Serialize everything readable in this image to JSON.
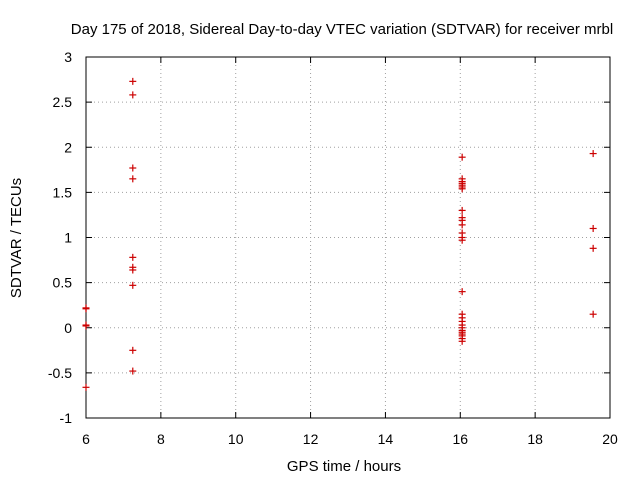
{
  "chart_data": {
    "type": "scatter",
    "title": "Day 175 of 2018, Sidereal Day-to-day VTEC variation (SDTVAR) for receiver mrbl",
    "xlabel": "GPS time / hours",
    "ylabel": "SDTVAR / TECUs",
    "xlim": [
      6,
      20
    ],
    "ylim": [
      -1,
      3
    ],
    "xticks": [
      6,
      8,
      10,
      12,
      14,
      16,
      18,
      20
    ],
    "yticks": [
      -1,
      -0.5,
      0,
      0.5,
      1,
      1.5,
      2,
      2.5,
      3
    ],
    "xtick_labels": [
      "6",
      "8",
      "10",
      "12",
      "14",
      "16",
      "18",
      "20"
    ],
    "ytick_labels": [
      "-1",
      "-0.5",
      "0",
      "0.5",
      "1",
      "1.5",
      "2",
      "2.5",
      "3"
    ],
    "grid": true,
    "marker": "plus",
    "color": "#cc0000",
    "series": [
      {
        "points": [
          [
            6.0,
            0.22
          ],
          [
            6.0,
            0.21
          ],
          [
            6.0,
            0.03
          ],
          [
            6.0,
            0.02
          ],
          [
            6.0,
            -0.66
          ],
          [
            7.25,
            2.73
          ],
          [
            7.25,
            2.58
          ],
          [
            7.25,
            1.77
          ],
          [
            7.25,
            1.65
          ],
          [
            7.25,
            0.78
          ],
          [
            7.25,
            0.67
          ],
          [
            7.25,
            0.64
          ],
          [
            7.25,
            0.47
          ],
          [
            7.25,
            -0.25
          ],
          [
            7.25,
            -0.48
          ],
          [
            16.05,
            1.89
          ],
          [
            16.05,
            1.65
          ],
          [
            16.05,
            1.62
          ],
          [
            16.05,
            1.6
          ],
          [
            16.05,
            1.58
          ],
          [
            16.05,
            1.56
          ],
          [
            16.05,
            1.54
          ],
          [
            16.05,
            1.3
          ],
          [
            16.05,
            1.22
          ],
          [
            16.05,
            1.19
          ],
          [
            16.05,
            1.14
          ],
          [
            16.05,
            1.05
          ],
          [
            16.05,
            1.0
          ],
          [
            16.05,
            0.97
          ],
          [
            16.05,
            0.4
          ],
          [
            16.05,
            0.15
          ],
          [
            16.05,
            0.11
          ],
          [
            16.05,
            0.07
          ],
          [
            16.05,
            0.03
          ],
          [
            16.05,
            0.0
          ],
          [
            16.05,
            -0.03
          ],
          [
            16.05,
            -0.05
          ],
          [
            16.05,
            -0.07
          ],
          [
            16.05,
            -0.09
          ],
          [
            16.05,
            -0.12
          ],
          [
            16.05,
            -0.15
          ],
          [
            19.55,
            1.93
          ],
          [
            19.55,
            1.1
          ],
          [
            19.55,
            0.88
          ],
          [
            19.55,
            0.15
          ]
        ]
      }
    ]
  }
}
